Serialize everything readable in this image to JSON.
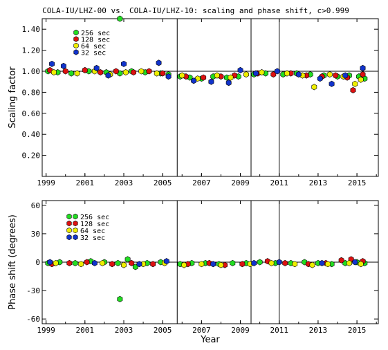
{
  "title": "COLA-IU/LHZ-00 vs. COLA-IU/LHZ-10: scaling and phase shift, c>0.999",
  "xlabel": "Year",
  "xticks": [
    "1999",
    "2001",
    "2003",
    "2005",
    "2007",
    "2009",
    "2011",
    "2013",
    "2015"
  ],
  "vlines": [
    2005.75,
    2009.55,
    2011.0
  ],
  "colors": {
    "256 sec": "#22dd22",
    "128 sec": "#dd1111",
    "64 sec": "#eeee00",
    "32 sec": "#1133cc"
  },
  "chart_data": [
    {
      "type": "scatter",
      "ylabel": "Scaling factor",
      "xlim": [
        1998.8,
        2016.1
      ],
      "ylim": [
        0,
        1.5
      ],
      "yticks": [
        "0.20",
        "0.40",
        "0.60",
        "0.80",
        "1.00",
        "1.20",
        "1.40"
      ],
      "legend": [
        "256 sec",
        "128 sec",
        "64 sec",
        "32 sec"
      ],
      "series": [
        {
          "name": "256 sec",
          "x": [
            1999.1,
            1999.6,
            2000.3,
            2001.2,
            2002.1,
            2002.8,
            2003.4,
            2004.1,
            2004.9,
            2005.3,
            2005.9,
            2006.4,
            2007.0,
            2007.6,
            2008.3,
            2008.9,
            2009.7,
            2010.3,
            2011.2,
            2011.9,
            2012.6,
            2013.3,
            2014.0,
            2014.6,
            2015.1,
            2015.4,
            2002.8
          ],
          "y": [
            1.0,
            0.99,
            0.98,
            1.0,
            0.99,
            0.98,
            1.0,
            0.99,
            0.98,
            0.97,
            0.95,
            0.94,
            0.93,
            0.95,
            0.94,
            0.95,
            0.97,
            0.98,
            0.97,
            0.98,
            0.97,
            0.96,
            0.95,
            0.96,
            0.95,
            0.93,
            1.5
          ]
        },
        {
          "name": "128 sec",
          "x": [
            1999.2,
            2000.0,
            2001.0,
            2001.8,
            2002.6,
            2003.5,
            2004.3,
            2005.0,
            2006.2,
            2007.1,
            2008.0,
            2008.7,
            2009.9,
            2010.7,
            2011.6,
            2012.4,
            2013.2,
            2013.9,
            2014.5,
            2014.8,
            2015.3
          ],
          "y": [
            1.01,
            1.0,
            1.01,
            0.99,
            1.0,
            0.99,
            1.0,
            0.98,
            0.95,
            0.94,
            0.95,
            0.96,
            0.98,
            0.97,
            0.98,
            0.96,
            0.95,
            0.96,
            0.94,
            0.82,
            0.97
          ]
        },
        {
          "name": "64 sec",
          "x": [
            1999.4,
            2000.6,
            2001.5,
            2002.3,
            2003.1,
            2003.9,
            2004.7,
            2006.0,
            2006.8,
            2007.8,
            2008.5,
            2009.3,
            2010.1,
            2011.4,
            2012.2,
            2012.8,
            2013.6,
            2014.3,
            2014.9,
            2015.2
          ],
          "y": [
            0.99,
            0.98,
            1.0,
            0.97,
            0.99,
            1.0,
            0.98,
            0.96,
            0.93,
            0.96,
            0.94,
            0.97,
            0.99,
            0.98,
            0.96,
            0.85,
            0.97,
            0.95,
            0.88,
            0.92
          ]
        },
        {
          "name": "32 sec",
          "x": [
            1999.3,
            1999.9,
            2001.6,
            2002.2,
            2003.0,
            2004.8,
            2005.3,
            2006.6,
            2007.5,
            2008.4,
            2009.0,
            2009.8,
            2010.9,
            2012.0,
            2013.1,
            2013.7,
            2014.4,
            2015.3
          ],
          "y": [
            1.07,
            1.05,
            1.03,
            0.96,
            1.07,
            1.08,
            0.95,
            0.91,
            0.9,
            0.89,
            1.01,
            0.98,
            1.0,
            0.97,
            0.93,
            0.88,
            0.96,
            1.03
          ]
        }
      ]
    },
    {
      "type": "scatter",
      "ylabel": "Phase shift (degrees)",
      "xlim": [
        1998.8,
        2016.1
      ],
      "ylim": [
        -65,
        65
      ],
      "yticks": [
        "-60",
        "-30",
        "0",
        "30",
        "60"
      ],
      "legend": [
        "256 sec",
        "128 sec",
        "64 sec",
        "32 sec"
      ],
      "series": [
        {
          "name": "256 sec",
          "x": [
            1999.1,
            1999.7,
            2000.5,
            2001.3,
            2002.0,
            2002.7,
            2003.2,
            2003.6,
            2004.2,
            2004.9,
            2005.9,
            2006.5,
            2007.2,
            2007.9,
            2008.6,
            2009.3,
            2010.0,
            2010.8,
            2011.6,
            2012.3,
            2013.0,
            2013.7,
            2014.4,
            2015.0,
            2015.4,
            2002.8
          ],
          "y": [
            -1,
            0,
            -1,
            1,
            0,
            -1,
            3,
            -5,
            -1,
            0,
            -2,
            -1,
            -1,
            -2,
            -1,
            -1,
            0,
            -1,
            -1,
            0,
            -1,
            -2,
            -1,
            0,
            -1,
            -39
          ]
        },
        {
          "name": "128 sec",
          "x": [
            1999.3,
            2000.2,
            2001.1,
            2002.4,
            2003.4,
            2004.5,
            2006.3,
            2007.4,
            2008.2,
            2009.1,
            2010.4,
            2011.3,
            2012.5,
            2013.4,
            2014.2,
            2014.7,
            2015.3
          ],
          "y": [
            -2,
            -1,
            0,
            -2,
            -1,
            -2,
            -2,
            -1,
            -3,
            -2,
            1,
            -1,
            -2,
            -1,
            2,
            3,
            1
          ]
        },
        {
          "name": "64 sec",
          "x": [
            1999.5,
            2000.8,
            2001.9,
            2003.0,
            2004.0,
            2005.1,
            2006.1,
            2007.0,
            2008.0,
            2009.5,
            2010.6,
            2011.8,
            2012.7,
            2013.5,
            2014.6,
            2015.2
          ],
          "y": [
            -1,
            -2,
            -1,
            -3,
            -2,
            -1,
            -3,
            -2,
            -3,
            -2,
            -1,
            -2,
            -3,
            -2,
            -1,
            -2
          ]
        },
        {
          "name": "32 sec",
          "x": [
            1999.2,
            2001.5,
            2003.8,
            2005.2,
            2007.6,
            2009.7,
            2011.0,
            2013.2,
            2014.9
          ],
          "y": [
            0,
            -1,
            -2,
            1,
            -2,
            -1,
            0,
            -1,
            0
          ]
        }
      ]
    }
  ]
}
